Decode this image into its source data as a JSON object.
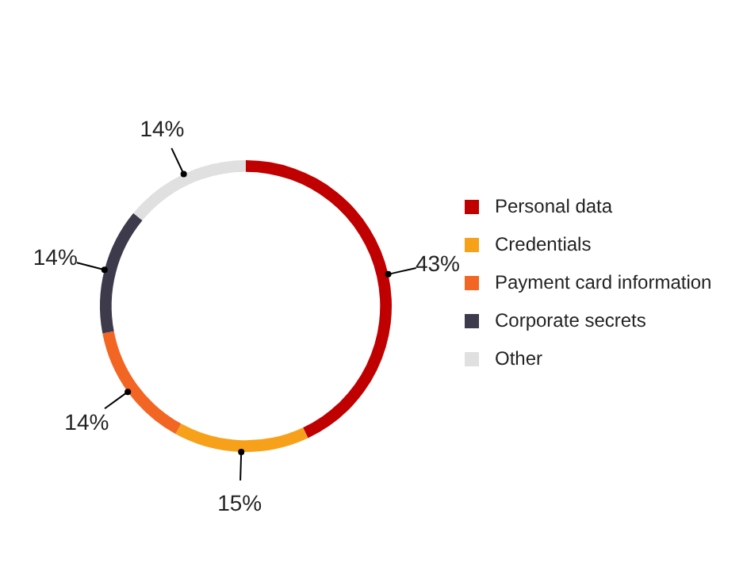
{
  "chart_data": {
    "type": "donut",
    "categories": [
      "Personal data",
      "Credentials",
      "Payment card information",
      "Corporate secrets",
      "Other"
    ],
    "values": [
      43,
      15,
      14,
      14,
      14
    ],
    "colors": [
      "#c00000",
      "#f7a01a",
      "#f26522",
      "#3d3a4b",
      "#e0e0e0"
    ],
    "value_labels": [
      "43%",
      "15%",
      "14%",
      "14%",
      "14%"
    ],
    "legend": "right"
  }
}
